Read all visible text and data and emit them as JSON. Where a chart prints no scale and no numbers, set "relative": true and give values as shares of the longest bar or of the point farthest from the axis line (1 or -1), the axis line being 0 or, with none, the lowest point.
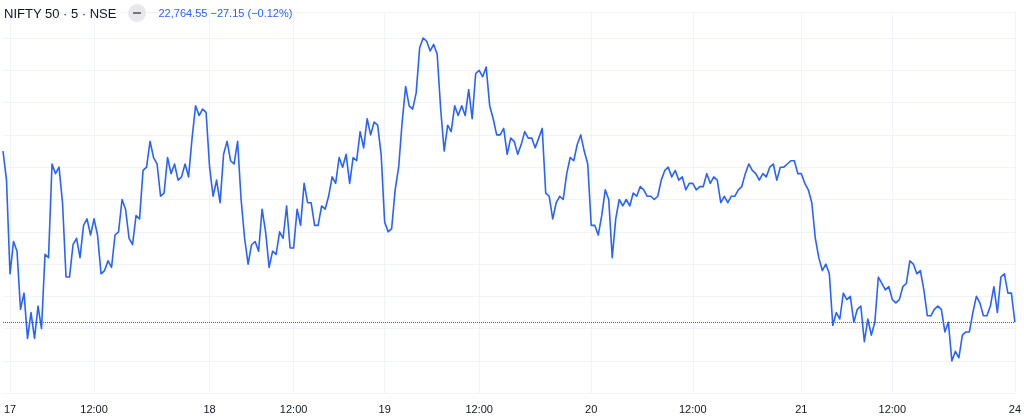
{
  "chart_data": {
    "type": "line",
    "title": "NIFTY 50 · 5 · NSE",
    "annotations": [
      "22,764.55  −27.15 (−0.12%)"
    ],
    "relative": true,
    "grid": true,
    "marker": "none",
    "line_style": "solid",
    "ref_lines": [
      {
        "axis": "y",
        "value": 0.12,
        "color": "#2962ff",
        "line_style": "dotted"
      }
    ],
    "categories": [
      null,
      null,
      "17",
      null,
      null,
      null,
      null,
      null,
      null,
      null,
      null,
      null,
      null,
      null,
      null,
      null,
      null,
      null,
      null,
      null,
      null,
      null,
      null,
      null,
      null,
      null,
      "12:00",
      null,
      null,
      null,
      null,
      null,
      null,
      null,
      null,
      null,
      null,
      null,
      null,
      null,
      null,
      null,
      null,
      null,
      null,
      null,
      null,
      null,
      null,
      null,
      null,
      null,
      null,
      null,
      null,
      null,
      null,
      null,
      null,
      "18",
      null,
      null,
      null,
      null,
      null,
      null,
      null,
      null,
      null,
      null,
      null,
      null,
      null,
      null,
      null,
      null,
      null,
      null,
      null,
      null,
      null,
      null,
      null,
      "12:00",
      null,
      null,
      null,
      null,
      null,
      null,
      null,
      null,
      null,
      null,
      null,
      null,
      null,
      null,
      null,
      null,
      null,
      null,
      null,
      null,
      null,
      null,
      null,
      null,
      null,
      "19",
      null,
      null,
      null,
      null,
      null,
      null,
      null,
      null,
      null,
      null,
      null,
      null,
      null,
      null,
      null,
      null,
      null,
      null,
      null,
      null,
      null,
      null,
      null,
      null,
      null,
      null,
      "12:00",
      null,
      null,
      null,
      null,
      null,
      null,
      null,
      null,
      null,
      null,
      null,
      null,
      null,
      null,
      null,
      null,
      null,
      null,
      null,
      null,
      null,
      null,
      null,
      null,
      null,
      null,
      null,
      null,
      null,
      null,
      null,
      "20",
      null,
      null,
      null,
      null,
      null,
      null,
      null,
      null,
      null,
      null,
      null,
      null,
      null,
      null,
      null,
      null,
      null,
      null,
      null,
      null,
      null,
      null,
      null,
      null,
      null,
      null,
      null,
      null,
      "12:00",
      null,
      null,
      null,
      null,
      null,
      null,
      null,
      null,
      null,
      null,
      null,
      null,
      null,
      null,
      null,
      null,
      null,
      null,
      null,
      null,
      null,
      null,
      null,
      null,
      null,
      null,
      null,
      null,
      null,
      null,
      "21",
      null,
      null,
      null,
      null,
      null,
      null,
      null,
      null,
      null,
      null,
      null,
      null,
      null,
      null,
      null,
      null,
      null,
      null,
      null,
      null,
      null,
      null,
      null,
      null,
      null,
      "12:00",
      null,
      null,
      null,
      null,
      null,
      null,
      null,
      null,
      null,
      null,
      null,
      null,
      null,
      null,
      null,
      null,
      null,
      null,
      null,
      null,
      null,
      null,
      null,
      null,
      null,
      null,
      null,
      null,
      null,
      null,
      null,
      null,
      null,
      null,
      "24"
    ],
    "series": [
      {
        "color": "#2962ff",
        "values": [
          0.65,
          0.56,
          0.27,
          0.37,
          0.34,
          0.16,
          0.21,
          0.07,
          0.15,
          0.07,
          0.17,
          0.1,
          0.33,
          0.32,
          0.61,
          0.58,
          0.6,
          0.49,
          0.26,
          0.26,
          0.36,
          0.38,
          0.32,
          0.42,
          0.44,
          0.39,
          0.44,
          0.39,
          0.27,
          0.28,
          0.31,
          0.29,
          0.39,
          0.4,
          0.5,
          0.47,
          0.38,
          0.36,
          0.45,
          0.44,
          0.59,
          0.6,
          0.68,
          0.63,
          0.61,
          0.51,
          0.52,
          0.63,
          0.58,
          0.61,
          0.56,
          0.57,
          0.61,
          0.57,
          0.69,
          0.79,
          0.76,
          0.78,
          0.77,
          0.6,
          0.51,
          0.56,
          0.49,
          0.64,
          0.68,
          0.62,
          0.61,
          0.68,
          0.5,
          0.38,
          0.3,
          0.36,
          0.37,
          0.34,
          0.47,
          0.4,
          0.29,
          0.34,
          0.33,
          0.4,
          0.38,
          0.48,
          0.35,
          0.35,
          0.47,
          0.42,
          0.55,
          0.49,
          0.49,
          0.42,
          0.42,
          0.48,
          0.47,
          0.51,
          0.57,
          0.55,
          0.63,
          0.6,
          0.64,
          0.55,
          0.63,
          0.62,
          0.71,
          0.66,
          0.75,
          0.7,
          0.74,
          0.73,
          0.64,
          0.43,
          0.4,
          0.41,
          0.53,
          0.6,
          0.74,
          0.85,
          0.79,
          0.78,
          0.83,
          0.97,
          1,
          0.99,
          0.96,
          0.98,
          0.95,
          0.78,
          0.65,
          0.73,
          0.71,
          0.79,
          0.76,
          0.79,
          0.76,
          0.84,
          0.75,
          0.89,
          0.9,
          0.88,
          0.91,
          0.79,
          0.75,
          0.7,
          0.7,
          0.72,
          0.64,
          0.69,
          0.68,
          0.64,
          0.67,
          0.71,
          0.69,
          0.69,
          0.66,
          0.69,
          0.72,
          0.52,
          0.51,
          0.44,
          0.49,
          0.51,
          0.5,
          0.58,
          0.63,
          0.62,
          0.67,
          0.7,
          0.65,
          0.61,
          0.42,
          0.42,
          0.39,
          0.45,
          0.53,
          0.5,
          0.32,
          0.44,
          0.5,
          0.48,
          0.5,
          0.48,
          0.52,
          0.51,
          0.54,
          0.53,
          0.51,
          0.51,
          0.5,
          0.51,
          0.56,
          0.59,
          0.6,
          0.57,
          0.59,
          0.56,
          0.57,
          0.53,
          0.55,
          0.55,
          0.53,
          0.54,
          0.54,
          0.58,
          0.55,
          0.57,
          0.56,
          0.49,
          0.51,
          0.49,
          0.51,
          0.51,
          0.53,
          0.54,
          0.58,
          0.61,
          0.59,
          0.58,
          0.56,
          0.58,
          0.57,
          0.6,
          0.61,
          0.56,
          0.6,
          0.6,
          0.61,
          0.62,
          0.62,
          0.58,
          0.58,
          0.55,
          0.53,
          0.49,
          0.38,
          0.32,
          0.28,
          0.3,
          0.27,
          0.11,
          0.15,
          0.13,
          0.21,
          0.19,
          0.2,
          0.12,
          0.16,
          0.17,
          0.06,
          0.13,
          0.08,
          0.12,
          0.26,
          0.24,
          0.22,
          0.23,
          0.19,
          0.18,
          0.19,
          0.23,
          0.24,
          0.31,
          0.3,
          0.27,
          0.28,
          0.22,
          0.14,
          0.14,
          0.16,
          0.17,
          0.16,
          0.09,
          0.12,
          0,
          0.03,
          0.01,
          0.08,
          0.09,
          0.09,
          0.15,
          0.2,
          0.18,
          0.14,
          0.14,
          0.17,
          0.23,
          0.15,
          0.26,
          0.27,
          0.21,
          0.21,
          0.12
        ]
      }
    ]
  }
}
